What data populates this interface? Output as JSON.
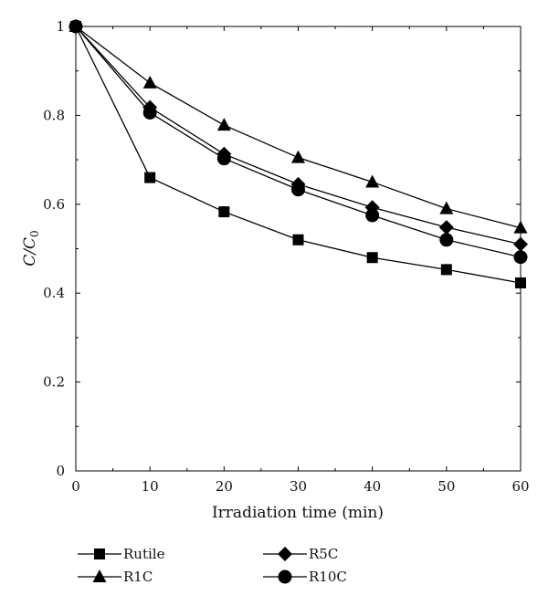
{
  "chart_data": {
    "type": "line",
    "title": "",
    "xlabel": "Irradiation time (min)",
    "ylabel": "C/C",
    "ylabel_subscript": "0",
    "xlim": [
      0,
      60
    ],
    "ylim": [
      0,
      1
    ],
    "x_ticks": [
      0,
      10,
      20,
      30,
      40,
      50,
      60
    ],
    "x_tick_labels": [
      "0",
      "10",
      "20",
      "30",
      "40",
      "50",
      "60"
    ],
    "y_ticks": [
      0,
      0.2,
      0.4,
      0.6,
      0.8,
      1
    ],
    "y_tick_labels": [
      "0",
      "0.2",
      "0.4",
      "0.6",
      "0.8",
      "1"
    ],
    "grid": false,
    "legend_placement": "bottom",
    "x": [
      0,
      10,
      20,
      30,
      40,
      50,
      60
    ],
    "series": [
      {
        "name": "Rutile",
        "marker": "square",
        "values": [
          1,
          0.66,
          0.583,
          0.52,
          0.48,
          0.453,
          0.423
        ]
      },
      {
        "name": "R1C",
        "marker": "triangle",
        "values": [
          1,
          0.873,
          0.778,
          0.705,
          0.65,
          0.59,
          0.547
        ]
      },
      {
        "name": "R5C",
        "marker": "diamond",
        "values": [
          1,
          0.818,
          0.713,
          0.645,
          0.593,
          0.548,
          0.51
        ]
      },
      {
        "name": "R10C",
        "marker": "circle",
        "values": [
          1,
          0.806,
          0.703,
          0.633,
          0.575,
          0.52,
          0.481
        ]
      }
    ],
    "colors": {
      "line": "#000000",
      "marker": "#000000",
      "axis": "#000000"
    }
  }
}
